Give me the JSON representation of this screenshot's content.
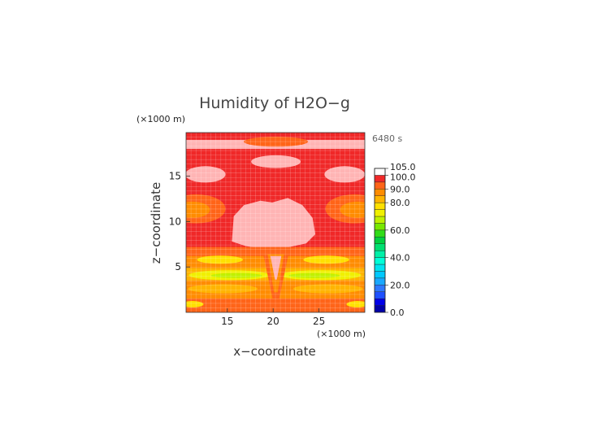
{
  "chart_data": {
    "type": "heatmap",
    "title": "Humidity of H2O−g",
    "xlabel": "x−coordinate",
    "ylabel": "z−coordinate",
    "x_unit": "(×1000 m)",
    "y_unit": "(×1000 m)",
    "time_label": "6480 s",
    "xlim": [
      10.5,
      30
    ],
    "ylim": [
      0,
      19.8
    ],
    "xticks": [
      15,
      20,
      25
    ],
    "yticks": [
      5,
      10,
      15
    ],
    "grid": true,
    "colorbar": {
      "labels": [
        "105.0",
        "100.0",
        "90.0",
        "80.0",
        "60.0",
        "40.0",
        "20.0",
        "0.0"
      ],
      "levels": [
        {
          "from": 0,
          "to": 5,
          "color": "#0000a8"
        },
        {
          "from": 5,
          "to": 10,
          "color": "#0000e8"
        },
        {
          "from": 10,
          "to": 15,
          "color": "#1e50ff"
        },
        {
          "from": 15,
          "to": 20,
          "color": "#2f78ff"
        },
        {
          "from": 20,
          "to": 25,
          "color": "#19a8ff"
        },
        {
          "from": 25,
          "to": 30,
          "color": "#00c8ff"
        },
        {
          "from": 30,
          "to": 35,
          "color": "#00e4f0"
        },
        {
          "from": 35,
          "to": 40,
          "color": "#00ffd8"
        },
        {
          "from": 40,
          "to": 45,
          "color": "#00f0a8"
        },
        {
          "from": 45,
          "to": 50,
          "color": "#00e070"
        },
        {
          "from": 50,
          "to": 55,
          "color": "#00d040"
        },
        {
          "from": 55,
          "to": 60,
          "color": "#30dc18"
        },
        {
          "from": 60,
          "to": 65,
          "color": "#78e800"
        },
        {
          "from": 65,
          "to": 70,
          "color": "#c0f000"
        },
        {
          "from": 70,
          "to": 75,
          "color": "#f0f000"
        },
        {
          "from": 75,
          "to": 80,
          "color": "#ffe000"
        },
        {
          "from": 80,
          "to": 85,
          "color": "#ffb400"
        },
        {
          "from": 85,
          "to": 90,
          "color": "#ff8c00"
        },
        {
          "from": 90,
          "to": 95,
          "color": "#ff6418"
        },
        {
          "from": 95,
          "to": 100,
          "color": "#f02828"
        },
        {
          "from": 100,
          "to": 105,
          "color": "#ffb4b4"
        }
      ]
    },
    "field": {
      "background_level": 97,
      "regions": [
        {
          "name": "saturated-top-band",
          "level": 102,
          "kind": "rect",
          "x": [
            10.5,
            30
          ],
          "y": [
            18.0,
            19.0
          ]
        },
        {
          "name": "upper-warm-ribbon",
          "level": 92,
          "kind": "ellipse",
          "cx": 20.3,
          "cy": 18.8,
          "rx": 3.5,
          "ry": 0.55
        },
        {
          "name": "saturated-left-lobe",
          "level": 102,
          "kind": "ellipse",
          "cx": 12.6,
          "cy": 15.2,
          "rx": 2.2,
          "ry": 0.9
        },
        {
          "name": "saturated-right-lobe",
          "level": 102,
          "kind": "ellipse",
          "cx": 27.8,
          "cy": 15.2,
          "rx": 2.2,
          "ry": 0.9
        },
        {
          "name": "saturated-upper-cap",
          "level": 102,
          "kind": "ellipse",
          "cx": 20.3,
          "cy": 16.6,
          "rx": 2.7,
          "ry": 0.7
        },
        {
          "name": "saturated-core",
          "level": 102,
          "kind": "blob",
          "points": [
            [
              15.5,
              7.8
            ],
            [
              15.7,
              10.6
            ],
            [
              16.8,
              11.8
            ],
            [
              18.6,
              12.3
            ],
            [
              19.9,
              12.1
            ],
            [
              21.6,
              12.6
            ],
            [
              23.2,
              11.8
            ],
            [
              24.3,
              10.4
            ],
            [
              24.6,
              8.6
            ],
            [
              23.6,
              7.6
            ],
            [
              21.8,
              7.2
            ],
            [
              20.3,
              6.6
            ],
            [
              18.9,
              7.0
            ],
            [
              17.0,
              7.3
            ]
          ]
        },
        {
          "name": "left-moist-lobe",
          "level": 92,
          "kind": "ellipse",
          "cx": 11.6,
          "cy": 11.4,
          "rx": 3.2,
          "ry": 1.6
        },
        {
          "name": "left-moist-core",
          "level": 87,
          "kind": "ellipse",
          "cx": 11.2,
          "cy": 11.3,
          "rx": 1.9,
          "ry": 0.9
        },
        {
          "name": "right-moist-lobe",
          "level": 92,
          "kind": "ellipse",
          "cx": 28.9,
          "cy": 11.4,
          "rx": 3.2,
          "ry": 1.6
        },
        {
          "name": "right-moist-core",
          "level": 87,
          "kind": "ellipse",
          "cx": 29.2,
          "cy": 11.3,
          "rx": 1.9,
          "ry": 0.9
        },
        {
          "name": "mid-band-upper",
          "level": 92,
          "kind": "rect",
          "x": [
            10.5,
            30
          ],
          "y": [
            5.6,
            7.2
          ]
        },
        {
          "name": "mid-band-core",
          "level": 87,
          "kind": "rect",
          "x": [
            10.5,
            30
          ],
          "y": [
            4.9,
            6.2
          ]
        },
        {
          "name": "mid-band-yellow-left",
          "level": 77,
          "kind": "ellipse",
          "cx": 14.2,
          "cy": 5.8,
          "rx": 2.5,
          "ry": 0.45
        },
        {
          "name": "mid-band-yellow-right",
          "level": 77,
          "kind": "ellipse",
          "cx": 25.8,
          "cy": 5.8,
          "rx": 2.5,
          "ry": 0.45
        },
        {
          "name": "dry-layer",
          "level": 82,
          "kind": "rect",
          "x": [
            10.5,
            30
          ],
          "y": [
            3.5,
            4.9
          ]
        },
        {
          "name": "dry-layer-left-yellow",
          "level": 72,
          "kind": "ellipse",
          "cx": 15.2,
          "cy": 4.1,
          "rx": 4.4,
          "ry": 0.55
        },
        {
          "name": "dry-layer-right-yellow",
          "level": 72,
          "kind": "ellipse",
          "cx": 25.2,
          "cy": 4.1,
          "rx": 4.4,
          "ry": 0.55
        },
        {
          "name": "dry-layer-left-lime",
          "level": 67,
          "kind": "ellipse",
          "cx": 16.0,
          "cy": 4.05,
          "rx": 2.8,
          "ry": 0.28
        },
        {
          "name": "dry-layer-right-lime",
          "level": 67,
          "kind": "ellipse",
          "cx": 24.5,
          "cy": 4.05,
          "rx": 2.8,
          "ry": 0.28
        },
        {
          "name": "lower-layer",
          "level": 87,
          "kind": "rect",
          "x": [
            10.5,
            30
          ],
          "y": [
            1.5,
            3.5
          ]
        },
        {
          "name": "lower-layer-orange-a",
          "level": 82,
          "kind": "ellipse",
          "cx": 14.5,
          "cy": 2.6,
          "rx": 3.8,
          "ry": 0.5
        },
        {
          "name": "lower-layer-orange-b",
          "level": 82,
          "kind": "ellipse",
          "cx": 26.0,
          "cy": 2.6,
          "rx": 3.8,
          "ry": 0.5
        },
        {
          "name": "surface-layer",
          "level": 92,
          "kind": "rect",
          "x": [
            10.5,
            30
          ],
          "y": [
            0,
            1.5
          ]
        },
        {
          "name": "surface-yellow-left",
          "level": 77,
          "kind": "ellipse",
          "cx": 11.2,
          "cy": 0.9,
          "rx": 1.2,
          "ry": 0.35
        },
        {
          "name": "surface-yellow-right",
          "level": 77,
          "kind": "ellipse",
          "cx": 29.2,
          "cy": 0.9,
          "rx": 1.2,
          "ry": 0.35
        },
        {
          "name": "plume-outer",
          "level": 92,
          "kind": "poly",
          "points": [
            [
              18.8,
              7.0
            ],
            [
              21.8,
              7.0
            ],
            [
              20.6,
              1.2
            ],
            [
              20.0,
              1.2
            ]
          ]
        },
        {
          "name": "plume-inner",
          "level": 87,
          "kind": "poly",
          "points": [
            [
              19.4,
              6.4
            ],
            [
              21.2,
              6.4
            ],
            [
              20.5,
              2.2
            ],
            [
              20.1,
              2.2
            ]
          ]
        },
        {
          "name": "plume-core",
          "level": 102,
          "kind": "poly",
          "points": [
            [
              19.7,
              6.2
            ],
            [
              20.9,
              6.2
            ],
            [
              20.4,
              3.6
            ],
            [
              20.2,
              3.6
            ]
          ]
        }
      ]
    }
  }
}
